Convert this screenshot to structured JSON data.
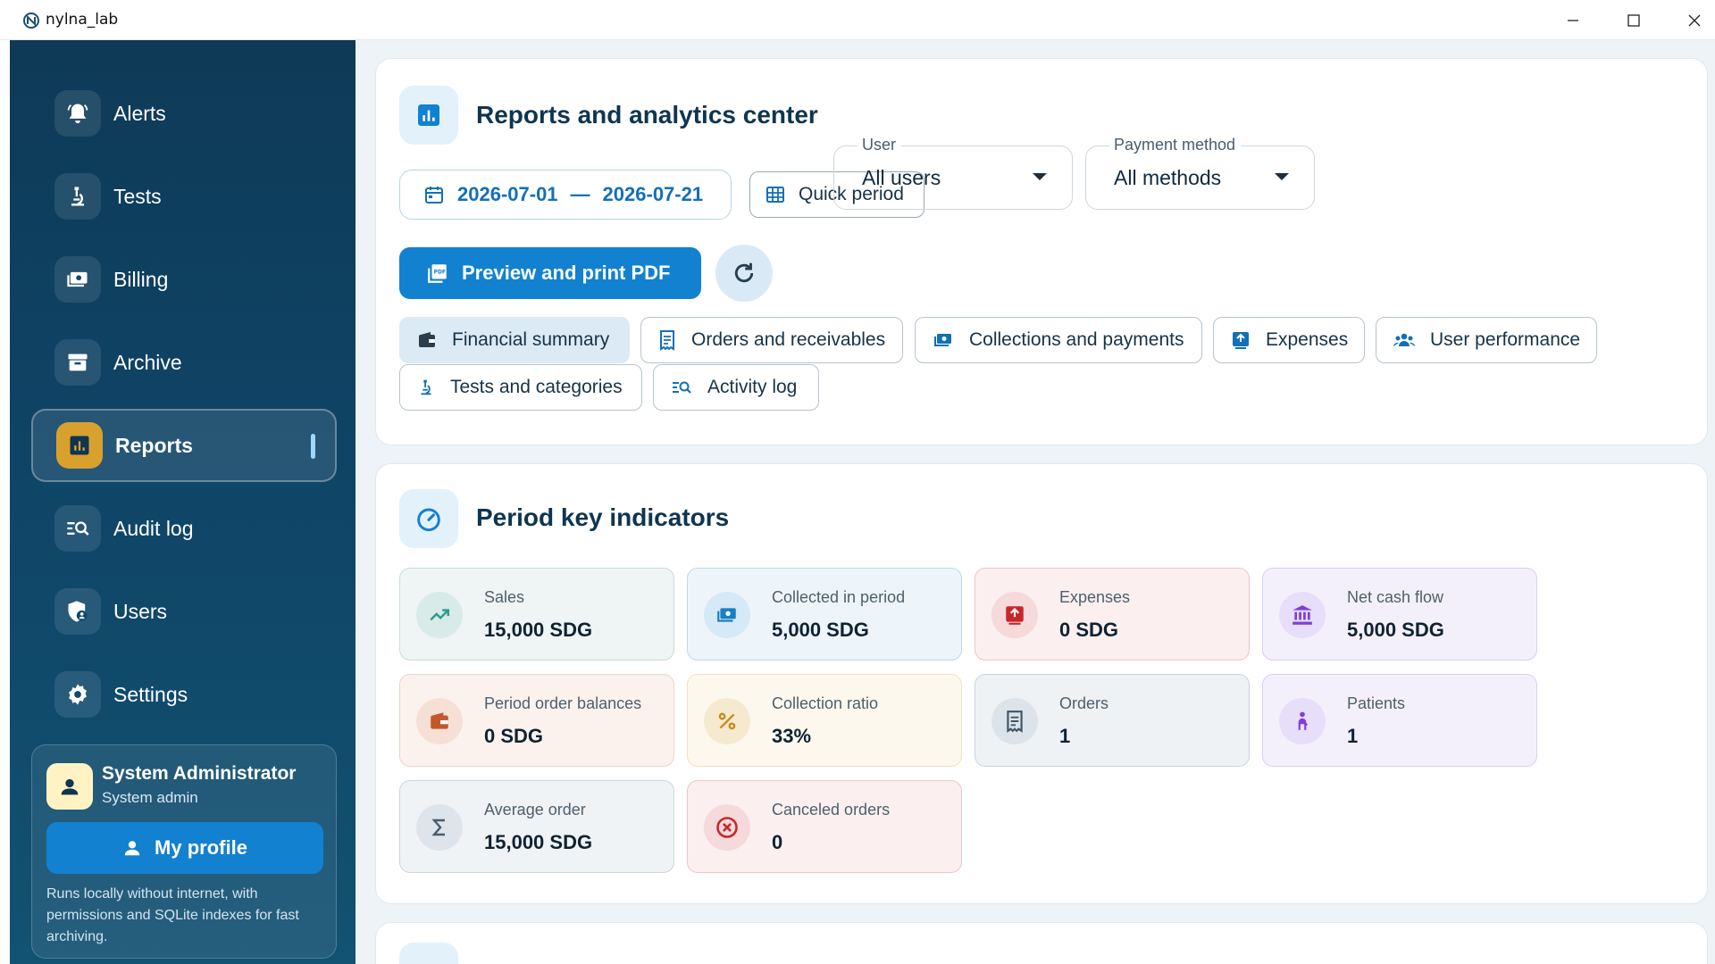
{
  "window": {
    "title": "nylna_lab"
  },
  "sidebar": {
    "items": [
      {
        "label": "Alerts",
        "icon": "bell-icon"
      },
      {
        "label": "Tests",
        "icon": "microscope-icon"
      },
      {
        "label": "Billing",
        "icon": "payments-icon"
      },
      {
        "label": "Archive",
        "icon": "archive-icon"
      },
      {
        "label": "Reports",
        "icon": "chart-icon",
        "active": true
      },
      {
        "label": "Audit log",
        "icon": "search-list-icon"
      },
      {
        "label": "Users",
        "icon": "user-shield-icon"
      },
      {
        "label": "Settings",
        "icon": "gear-icon"
      }
    ],
    "profile": {
      "name": "System Administrator",
      "role": "System admin",
      "button": "My profile",
      "note": "Runs locally without internet, with permissions and SQLite indexes for fast archiving."
    }
  },
  "reports": {
    "title": "Reports and analytics center",
    "date_from": "2026-07-01",
    "date_sep": "—",
    "date_to": "2026-07-21",
    "quick_period": "Quick period",
    "user_select": {
      "label": "User",
      "value": "All users"
    },
    "payment_select": {
      "label": "Payment method",
      "value": "All methods"
    },
    "pdf_button": "Preview and print PDF",
    "tabs": [
      "Financial summary",
      "Orders and receivables",
      "Collections and payments",
      "Expenses",
      "User performance",
      "Tests and categories",
      "Activity log"
    ],
    "selected_tab": "Financial summary"
  },
  "indicators": {
    "title": "Period key indicators",
    "items": [
      {
        "label": "Sales",
        "value": "15,000 SDG",
        "color": "#2a9d8f"
      },
      {
        "label": "Collected in period",
        "value": "5,000 SDG",
        "color": "#1a7fc4"
      },
      {
        "label": "Expenses",
        "value": "0 SDG",
        "color": "#c62828"
      },
      {
        "label": "Net cash flow",
        "value": "5,000 SDG",
        "color": "#7e3fd6"
      },
      {
        "label": "Period order balances",
        "value": "0 SDG",
        "color": "#c4572a"
      },
      {
        "label": "Collection ratio",
        "value": "33%",
        "color": "#c98a1b"
      },
      {
        "label": "Orders",
        "value": "1",
        "color": "#3f5566"
      },
      {
        "label": "Patients",
        "value": "1",
        "color": "#7e3fd6"
      },
      {
        "label": "Average order",
        "value": "15,000 SDG",
        "color": "#4a5c6b"
      },
      {
        "label": "Canceled orders",
        "value": "0",
        "color": "#c62828"
      }
    ]
  }
}
